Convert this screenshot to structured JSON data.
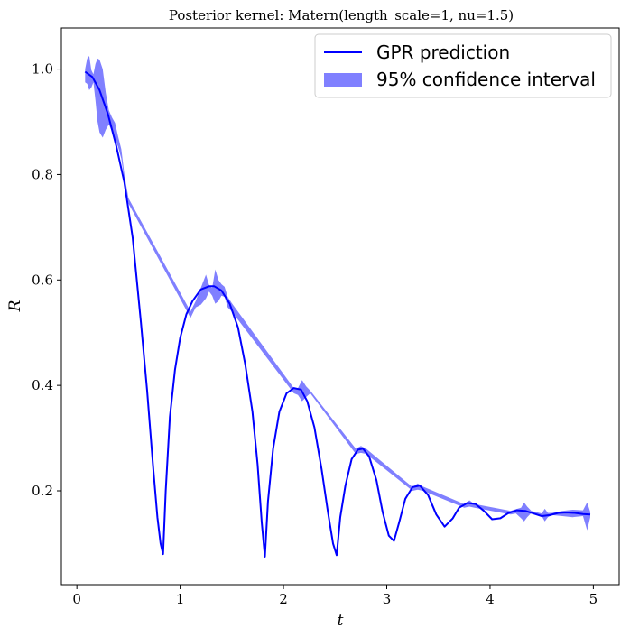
{
  "chart_data": {
    "type": "line",
    "title": "Posterior kernel: Matern(length_scale=1, nu=1.5)",
    "xlabel": "t",
    "ylabel": "R",
    "xlim": [
      -0.15,
      5.25
    ],
    "ylim": [
      0.022,
      1.078
    ],
    "xticks": [
      0,
      1,
      2,
      3,
      4,
      5
    ],
    "yticks": [
      0.2,
      0.4,
      0.6,
      0.8,
      1.0
    ],
    "xtick_labels": [
      "0",
      "1",
      "2",
      "3",
      "4",
      "5"
    ],
    "ytick_labels": [
      "0.2",
      "0.4",
      "0.6",
      "0.8",
      "1.0"
    ],
    "grid": false,
    "legend_position": "top-right",
    "colors": {
      "line": "#0000ff",
      "band": "#8080ff",
      "axes": "#000000"
    },
    "series": [
      {
        "name": "GPR prediction",
        "kind": "line",
        "x": [
          0.08,
          0.15,
          0.22,
          0.3,
          0.38,
          0.46,
          0.54,
          0.62,
          0.68,
          0.74,
          0.78,
          0.81,
          0.835,
          0.86,
          0.9,
          0.95,
          1.0,
          1.06,
          1.12,
          1.2,
          1.28,
          1.33,
          1.4,
          1.48,
          1.56,
          1.63,
          1.7,
          1.75,
          1.79,
          1.82,
          1.85,
          1.9,
          1.96,
          2.03,
          2.1,
          2.17,
          2.23,
          2.3,
          2.37,
          2.43,
          2.48,
          2.515,
          2.55,
          2.6,
          2.66,
          2.72,
          2.77,
          2.83,
          2.9,
          2.96,
          3.02,
          3.07,
          3.12,
          3.18,
          3.25,
          3.32,
          3.4,
          3.48,
          3.56,
          3.64,
          3.7,
          3.78,
          3.86,
          3.94,
          4.02,
          4.1,
          4.18,
          4.26,
          4.34,
          4.42,
          4.5,
          4.58,
          4.66,
          4.74,
          4.82,
          4.9,
          4.97
        ],
        "y": [
          0.995,
          0.985,
          0.96,
          0.915,
          0.855,
          0.785,
          0.68,
          0.52,
          0.39,
          0.24,
          0.15,
          0.1,
          0.08,
          0.2,
          0.34,
          0.43,
          0.49,
          0.535,
          0.56,
          0.582,
          0.588,
          0.588,
          0.58,
          0.555,
          0.51,
          0.44,
          0.35,
          0.25,
          0.14,
          0.075,
          0.18,
          0.28,
          0.35,
          0.385,
          0.395,
          0.392,
          0.37,
          0.32,
          0.24,
          0.16,
          0.1,
          0.078,
          0.15,
          0.21,
          0.26,
          0.278,
          0.28,
          0.265,
          0.22,
          0.16,
          0.115,
          0.105,
          0.14,
          0.185,
          0.207,
          0.21,
          0.192,
          0.155,
          0.132,
          0.148,
          0.168,
          0.177,
          0.175,
          0.162,
          0.146,
          0.148,
          0.158,
          0.163,
          0.162,
          0.157,
          0.152,
          0.154,
          0.158,
          0.159,
          0.158,
          0.156,
          0.155
        ]
      },
      {
        "name": "95% confidence interval",
        "kind": "band",
        "x": [
          0.08,
          0.1,
          0.12,
          0.14,
          0.16,
          0.18,
          0.2,
          0.22,
          0.25,
          0.28,
          0.31,
          0.34,
          0.37,
          0.4,
          0.43,
          0.46,
          0.5,
          1.1,
          1.15,
          1.2,
          1.25,
          1.28,
          1.31,
          1.34,
          1.37,
          1.4,
          1.43,
          1.46,
          1.5,
          2.1,
          2.14,
          2.18,
          2.22,
          2.26,
          2.7,
          2.75,
          2.8,
          3.25,
          3.3,
          3.35,
          3.75,
          3.8,
          3.85,
          4.2,
          4.25,
          4.3,
          4.33,
          4.36,
          4.4,
          4.5,
          4.53,
          4.56,
          4.6,
          4.7,
          4.8,
          4.9,
          4.94,
          4.97
        ],
        "lower": [
          0.975,
          0.972,
          0.96,
          0.965,
          0.975,
          0.94,
          0.9,
          0.88,
          0.87,
          0.885,
          0.895,
          0.882,
          0.868,
          0.852,
          0.83,
          0.79,
          0.745,
          0.528,
          0.548,
          0.553,
          0.565,
          0.578,
          0.57,
          0.555,
          0.56,
          0.57,
          0.568,
          0.548,
          0.54,
          0.385,
          0.382,
          0.37,
          0.378,
          0.385,
          0.27,
          0.272,
          0.27,
          0.2,
          0.202,
          0.2,
          0.168,
          0.17,
          0.168,
          0.155,
          0.157,
          0.148,
          0.142,
          0.15,
          0.158,
          0.152,
          0.142,
          0.15,
          0.154,
          0.152,
          0.15,
          0.152,
          0.125,
          0.15
        ],
        "upper": [
          1.0,
          1.02,
          1.025,
          0.998,
          0.99,
          1.01,
          1.02,
          1.018,
          1.0,
          0.955,
          0.922,
          0.908,
          0.898,
          0.872,
          0.848,
          0.8,
          0.755,
          0.54,
          0.56,
          0.585,
          0.61,
          0.59,
          0.585,
          0.62,
          0.6,
          0.592,
          0.587,
          0.568,
          0.556,
          0.395,
          0.395,
          0.41,
          0.398,
          0.39,
          0.28,
          0.285,
          0.28,
          0.207,
          0.214,
          0.208,
          0.175,
          0.182,
          0.175,
          0.162,
          0.165,
          0.168,
          0.178,
          0.17,
          0.162,
          0.157,
          0.166,
          0.158,
          0.158,
          0.162,
          0.164,
          0.163,
          0.178,
          0.16
        ]
      }
    ]
  }
}
